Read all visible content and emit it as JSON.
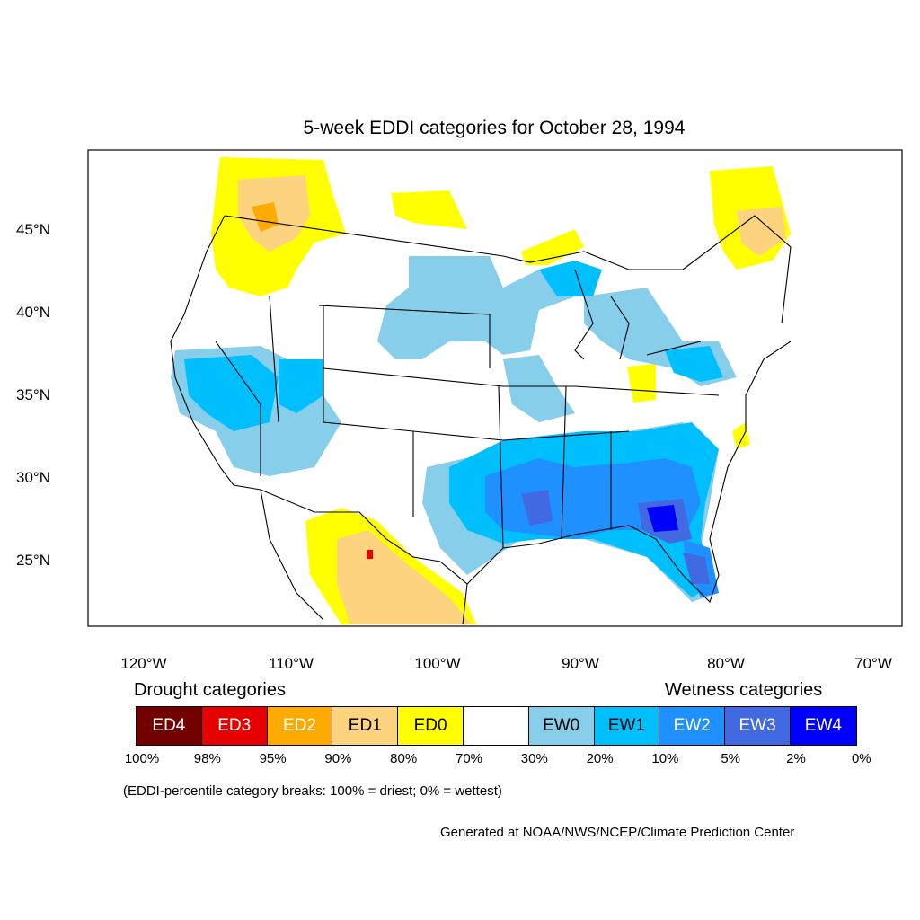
{
  "title": "5-week EDDI categories for October 28, 1994",
  "lat_labels": [
    "45°N",
    "40°N",
    "35°N",
    "30°N",
    "25°N"
  ],
  "lon_labels": [
    "120°W",
    "110°W",
    "100°W",
    "90°W",
    "80°W",
    "70°W"
  ],
  "legend": {
    "drought_heading": "Drought categories",
    "wetness_heading": "Wetness categories",
    "categories": [
      {
        "label": "ED4",
        "color": "#730000",
        "text_color": "#ffffff"
      },
      {
        "label": "ED3",
        "color": "#e60000",
        "text_color": "#ffffff"
      },
      {
        "label": "ED2",
        "color": "#ffaa00",
        "text_color": "#ffffff"
      },
      {
        "label": "ED1",
        "color": "#fcd37f",
        "text_color": "#000000"
      },
      {
        "label": "ED0",
        "color": "#ffff00",
        "text_color": "#000000"
      },
      {
        "label": "",
        "color": "#ffffff",
        "text_color": "#000000"
      },
      {
        "label": "EW0",
        "color": "#87ceeb",
        "text_color": "#000000"
      },
      {
        "label": "EW1",
        "color": "#00bfff",
        "text_color": "#000000"
      },
      {
        "label": "EW2",
        "color": "#1e90ff",
        "text_color": "#ffffff"
      },
      {
        "label": "EW3",
        "color": "#4169e1",
        "text_color": "#ffffff"
      },
      {
        "label": "EW4",
        "color": "#0000ff",
        "text_color": "#ffffff"
      }
    ],
    "breaks": [
      "100%",
      "98%",
      "95%",
      "90%",
      "80%",
      "70%",
      "30%",
      "20%",
      "10%",
      "5%",
      "2%",
      "0%"
    ]
  },
  "footnote": "(EDDI-percentile category breaks: 100% = driest; 0% = wettest)",
  "credit": "Generated at NOAA/NWS/NCEP/Climate Prediction Center"
}
